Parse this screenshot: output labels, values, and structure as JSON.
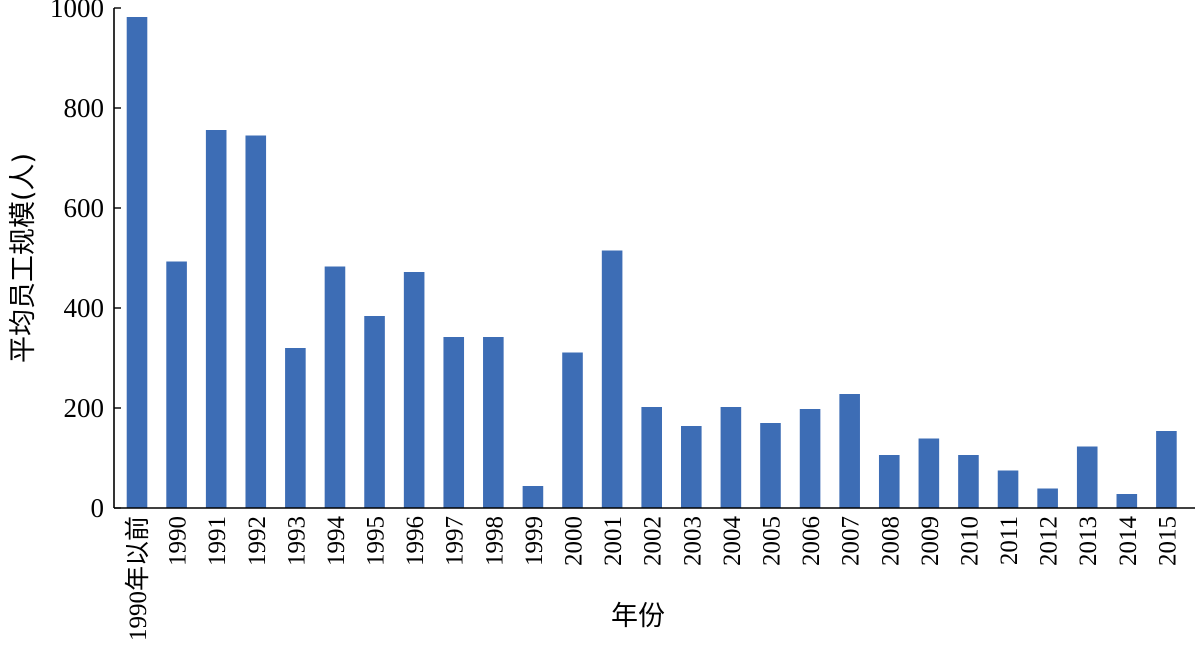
{
  "chart_data": {
    "type": "bar",
    "title": "",
    "xlabel": "年份",
    "ylabel": "平均员工规模(人)",
    "ylim": [
      0,
      1000
    ],
    "yticks": [
      0,
      200,
      400,
      600,
      800,
      1000
    ],
    "grid": false,
    "legend": "none",
    "bar_color": "#3d6db5",
    "categories": [
      "1990年以前",
      "1990",
      "1991",
      "1992",
      "1993",
      "1994",
      "1995",
      "1996",
      "1997",
      "1998",
      "1999",
      "2000",
      "2001",
      "2002",
      "2003",
      "2004",
      "2005",
      "2006",
      "2007",
      "2008",
      "2009",
      "2010",
      "2011",
      "2012",
      "2013",
      "2014",
      "2015"
    ],
    "values": [
      982,
      493,
      756,
      745,
      320,
      483,
      384,
      472,
      342,
      342,
      44,
      311,
      515,
      202,
      164,
      202,
      170,
      198,
      228,
      106,
      139,
      106,
      75,
      39,
      123,
      28,
      154
    ]
  }
}
